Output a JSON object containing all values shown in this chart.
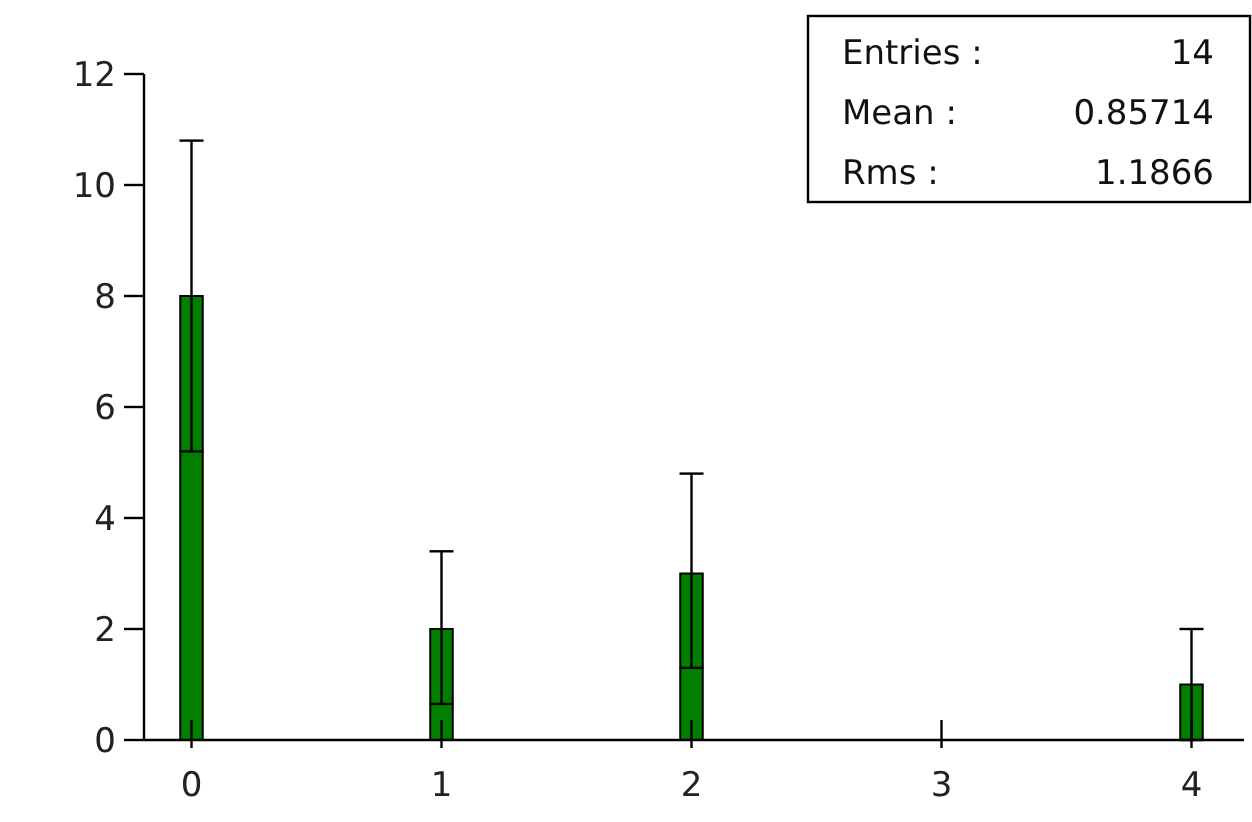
{
  "chart_data": {
    "type": "bar",
    "x": [
      0,
      1,
      2,
      4
    ],
    "values": [
      8,
      2,
      3,
      1
    ],
    "color": "#007f00",
    "errors": [
      [
        5.2,
        10.8
      ],
      [
        0.65,
        3.4
      ],
      [
        1.3,
        4.8
      ],
      [
        0,
        2
      ]
    ],
    "xlim": [
      -0.19,
      4.21
    ],
    "xticks": [
      0,
      1,
      2,
      3,
      4
    ],
    "ylim": [
      0,
      12
    ],
    "yticks": [
      0,
      2,
      4,
      6,
      8,
      10,
      12
    ],
    "grid": false,
    "annotations": [
      "Entries :",
      "14",
      "Mean :",
      "0.85714",
      "Rms :",
      "1.1866"
    ]
  }
}
